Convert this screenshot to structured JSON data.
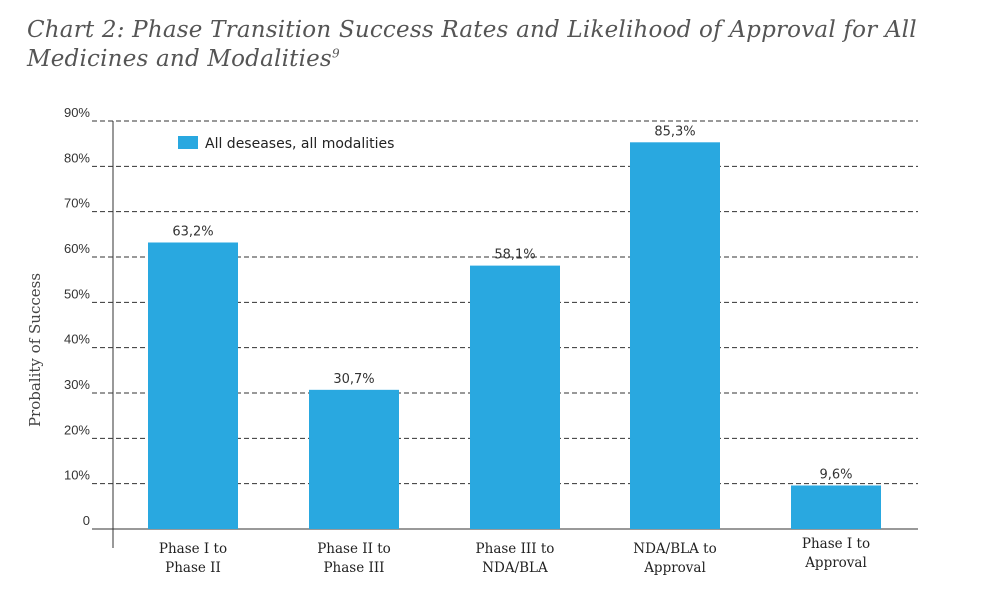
{
  "title_main": "Chart 2: Phase Transition Success Rates and Likelihood of Approval for All Medicines and Modalities",
  "title_footnote": "9",
  "chart_data": {
    "type": "bar",
    "title": "Chart 2: Phase Transition Success Rates and Likelihood of Approval for All Medicines and Modalities",
    "categories": [
      [
        "Phase I to",
        "Phase II"
      ],
      [
        "Phase II to",
        "Phase III"
      ],
      [
        "Phase III to",
        "NDA/BLA"
      ],
      [
        "NDA/BLA to",
        "Approval"
      ],
      [
        "Phase I to",
        "Approval"
      ]
    ],
    "series": [
      {
        "name": "All deseases, all modalities",
        "values": [
          63.2,
          30.7,
          58.1,
          85.3,
          9.6
        ],
        "labels": [
          "63,2%",
          "30,7%",
          "58,1%",
          "85,3%",
          "9,6%"
        ],
        "color": "#29a8e0"
      }
    ],
    "ylabel": "Probality of Success",
    "xlabel": "",
    "ylim": [
      0,
      90
    ],
    "yticks": [
      0,
      10,
      20,
      30,
      40,
      50,
      60,
      70,
      80,
      90
    ],
    "ytick_labels": [
      "0",
      "10%",
      "20%",
      "30%",
      "40%",
      "50%",
      "60%",
      "70%",
      "80%",
      "90%"
    ],
    "grid": "dashed horizontal",
    "legend": "top-left"
  },
  "colors": {
    "bar": "#29a8e0",
    "grid": "#333333",
    "axis": "#333333"
  }
}
